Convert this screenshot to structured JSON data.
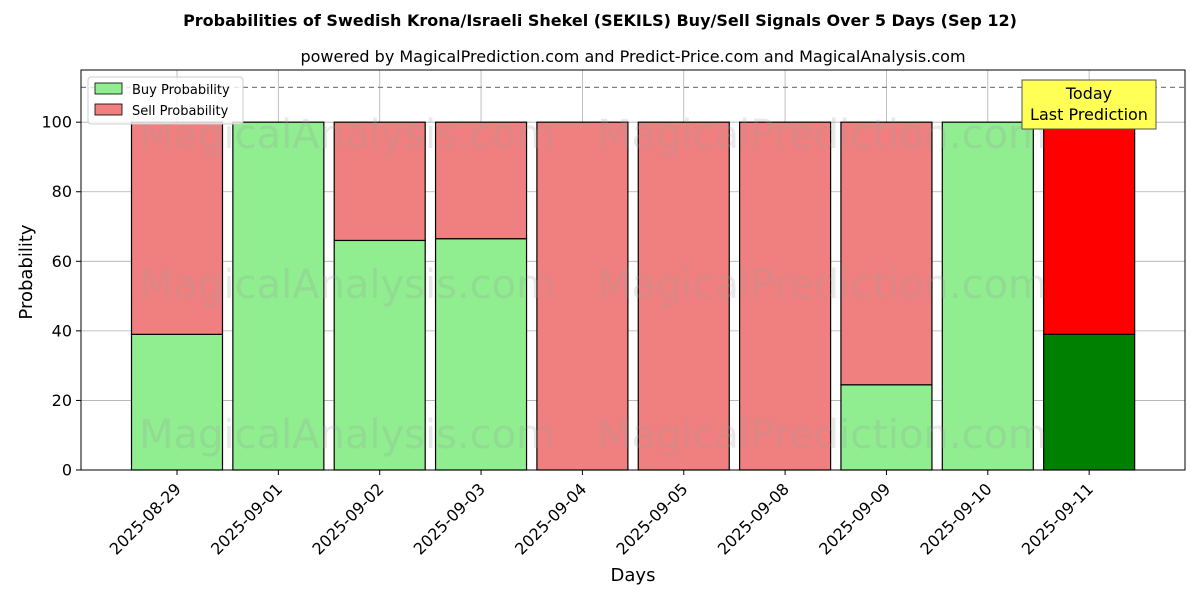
{
  "chart_data": {
    "type": "bar",
    "stacked": true,
    "title": "Probabilities of Swedish Krona/Israeli Shekel (SEKILS) Buy/Sell Signals Over 5 Days (Sep 12)",
    "subtitle": "powered by MagicalPrediction.com and Predict-Price.com and MagicalAnalysis.com",
    "xlabel": "Days",
    "ylabel": "Probability",
    "ylim": [
      0,
      115
    ],
    "yticks": [
      0,
      20,
      40,
      60,
      80,
      100
    ],
    "grid": true,
    "legend_position": "top-left",
    "reference_line": 110,
    "categories": [
      "2025-08-29",
      "2025-09-01",
      "2025-09-02",
      "2025-09-03",
      "2025-09-04",
      "2025-09-05",
      "2025-09-08",
      "2025-09-09",
      "2025-09-10",
      "2025-09-11"
    ],
    "series": [
      {
        "name": "Buy Probability",
        "values": [
          39,
          100,
          66,
          66.5,
          0,
          0,
          0,
          24.5,
          100,
          39
        ],
        "color": "#90ee90",
        "highlight_color": "#008000"
      },
      {
        "name": "Sell Probability",
        "values": [
          61,
          0,
          34,
          33.5,
          100,
          100,
          100,
          75.5,
          0,
          61
        ],
        "color": "#f08080",
        "highlight_color": "#ff0000"
      }
    ],
    "highlight_index": 9,
    "annotation": {
      "line1": "Today",
      "line2": "Last Prediction",
      "background": "#ffff55"
    },
    "watermarks": [
      "MagicalAnalysis.com",
      "MagicalPrediction.com"
    ]
  }
}
